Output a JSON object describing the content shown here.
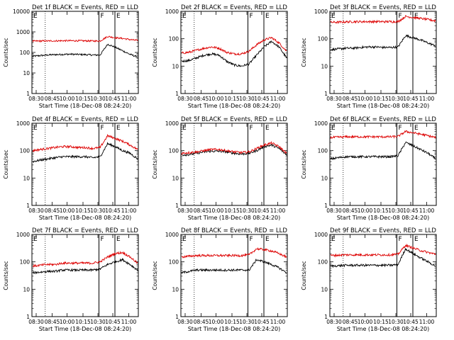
{
  "common": {
    "ylabel": "Counts/sec",
    "xlabel": "Start Time (18-Dec-08 08:24:20)",
    "xticks": [
      "08:30",
      "08:45",
      "10:00",
      "10:15",
      "10:30",
      "10:45",
      "11:00"
    ],
    "markers": [
      "F",
      "E"
    ],
    "colors": {
      "events": "#000000",
      "lld": "#dd0000"
    }
  },
  "chart_data": [
    {
      "type": "line",
      "title": "Det 1f BLACK = Events, RED = LLD",
      "ylim": [
        1,
        10000
      ],
      "yticks": [
        "1",
        "10",
        "100",
        "1000",
        "10000"
      ],
      "yscale": "log",
      "series": [
        {
          "name": "Events",
          "values": [
            65,
            70,
            75,
            78,
            80,
            82,
            80,
            78,
            75,
            75,
            250,
            180,
            120,
            80,
            60
          ]
        },
        {
          "name": "LLD",
          "values": [
            350,
            360,
            360,
            365,
            370,
            370,
            370,
            365,
            360,
            360,
            600,
            520,
            480,
            420,
            380
          ]
        }
      ]
    },
    {
      "type": "line",
      "title": "Det 2f BLACK = Events, RED = LLD",
      "ylim": [
        1,
        1000
      ],
      "yticks": [
        "1",
        "10",
        "100",
        "1000"
      ],
      "yscale": "log",
      "series": [
        {
          "name": "Events",
          "values": [
            15,
            16,
            20,
            25,
            28,
            25,
            15,
            11,
            10,
            12,
            25,
            50,
            80,
            50,
            20
          ]
        },
        {
          "name": "LLD",
          "values": [
            30,
            32,
            38,
            45,
            50,
            45,
            32,
            28,
            28,
            35,
            60,
            90,
            110,
            70,
            35
          ]
        }
      ]
    },
    {
      "type": "line",
      "title": "Det 3f BLACK = Events, RED = LLD",
      "ylim": [
        1,
        1000
      ],
      "yticks": [
        "1",
        "10",
        "100",
        "1000"
      ],
      "yscale": "log",
      "series": [
        {
          "name": "Events",
          "values": [
            40,
            42,
            45,
            45,
            48,
            50,
            50,
            48,
            48,
            50,
            130,
            110,
            90,
            70,
            55
          ]
        },
        {
          "name": "LLD",
          "values": [
            400,
            400,
            410,
            420,
            420,
            420,
            420,
            420,
            420,
            420,
            650,
            600,
            550,
            500,
            450
          ]
        }
      ]
    },
    {
      "type": "line",
      "title": "Det 4f BLACK = Events, RED = LLD",
      "ylim": [
        1,
        1000
      ],
      "yticks": [
        "1",
        "10",
        "100",
        "1000"
      ],
      "yscale": "log",
      "series": [
        {
          "name": "Events",
          "values": [
            40,
            45,
            50,
            55,
            60,
            60,
            60,
            60,
            55,
            60,
            180,
            140,
            100,
            80,
            50
          ]
        },
        {
          "name": "LLD",
          "values": [
            100,
            110,
            120,
            130,
            140,
            140,
            130,
            130,
            120,
            130,
            350,
            280,
            220,
            160,
            110
          ]
        }
      ]
    },
    {
      "type": "line",
      "title": "Det 5f BLACK = Events, RED = LLD",
      "ylim": [
        1,
        1000
      ],
      "yticks": [
        "1",
        "10",
        "100",
        "1000"
      ],
      "yscale": "log",
      "series": [
        {
          "name": "Events",
          "values": [
            70,
            72,
            80,
            90,
            95,
            95,
            90,
            80,
            75,
            80,
            100,
            140,
            160,
            120,
            70
          ]
        },
        {
          "name": "LLD",
          "values": [
            80,
            85,
            90,
            100,
            110,
            110,
            100,
            90,
            85,
            90,
            120,
            160,
            190,
            140,
            80
          ]
        }
      ]
    },
    {
      "type": "line",
      "title": "Det 6f BLACK = Events, RED = LLD",
      "ylim": [
        1,
        1000
      ],
      "yticks": [
        "1",
        "10",
        "100",
        "1000"
      ],
      "yscale": "log",
      "series": [
        {
          "name": "Events",
          "values": [
            50,
            55,
            60,
            60,
            60,
            60,
            60,
            60,
            60,
            65,
            200,
            150,
            110,
            80,
            50
          ]
        },
        {
          "name": "LLD",
          "values": [
            300,
            310,
            320,
            320,
            320,
            320,
            320,
            320,
            320,
            330,
            500,
            450,
            400,
            350,
            300
          ]
        }
      ]
    },
    {
      "type": "line",
      "title": "Det 7f BLACK = Events, RED = LLD",
      "ylim": [
        1,
        1000
      ],
      "yticks": [
        "1",
        "10",
        "100",
        "1000"
      ],
      "yscale": "log",
      "series": [
        {
          "name": "Events",
          "values": [
            40,
            42,
            45,
            45,
            50,
            50,
            50,
            50,
            50,
            55,
            80,
            100,
            120,
            80,
            50
          ]
        },
        {
          "name": "LLD",
          "values": [
            70,
            75,
            80,
            80,
            90,
            90,
            90,
            90,
            90,
            100,
            150,
            200,
            220,
            150,
            90
          ]
        }
      ]
    },
    {
      "type": "line",
      "title": "Det 8f BLACK = Events, RED = LLD",
      "ylim": [
        1,
        1000
      ],
      "yticks": [
        "1",
        "10",
        "100",
        "1000"
      ],
      "yscale": "log",
      "series": [
        {
          "name": "Events",
          "values": [
            40,
            45,
            50,
            50,
            50,
            50,
            50,
            50,
            50,
            50,
            120,
            100,
            80,
            60,
            40
          ]
        },
        {
          "name": "LLD",
          "values": [
            150,
            160,
            170,
            170,
            170,
            170,
            170,
            170,
            170,
            180,
            300,
            280,
            250,
            200,
            150
          ]
        }
      ]
    },
    {
      "type": "line",
      "title": "Det 9f BLACK = Events, RED = LLD",
      "ylim": [
        1,
        1000
      ],
      "yticks": [
        "1",
        "10",
        "100",
        "1000"
      ],
      "yscale": "log",
      "series": [
        {
          "name": "Events",
          "values": [
            70,
            72,
            75,
            75,
            75,
            75,
            75,
            75,
            75,
            80,
            300,
            200,
            140,
            100,
            70
          ]
        },
        {
          "name": "LLD",
          "values": [
            170,
            175,
            180,
            180,
            180,
            180,
            180,
            180,
            180,
            190,
            400,
            320,
            260,
            220,
            190
          ]
        }
      ]
    }
  ]
}
